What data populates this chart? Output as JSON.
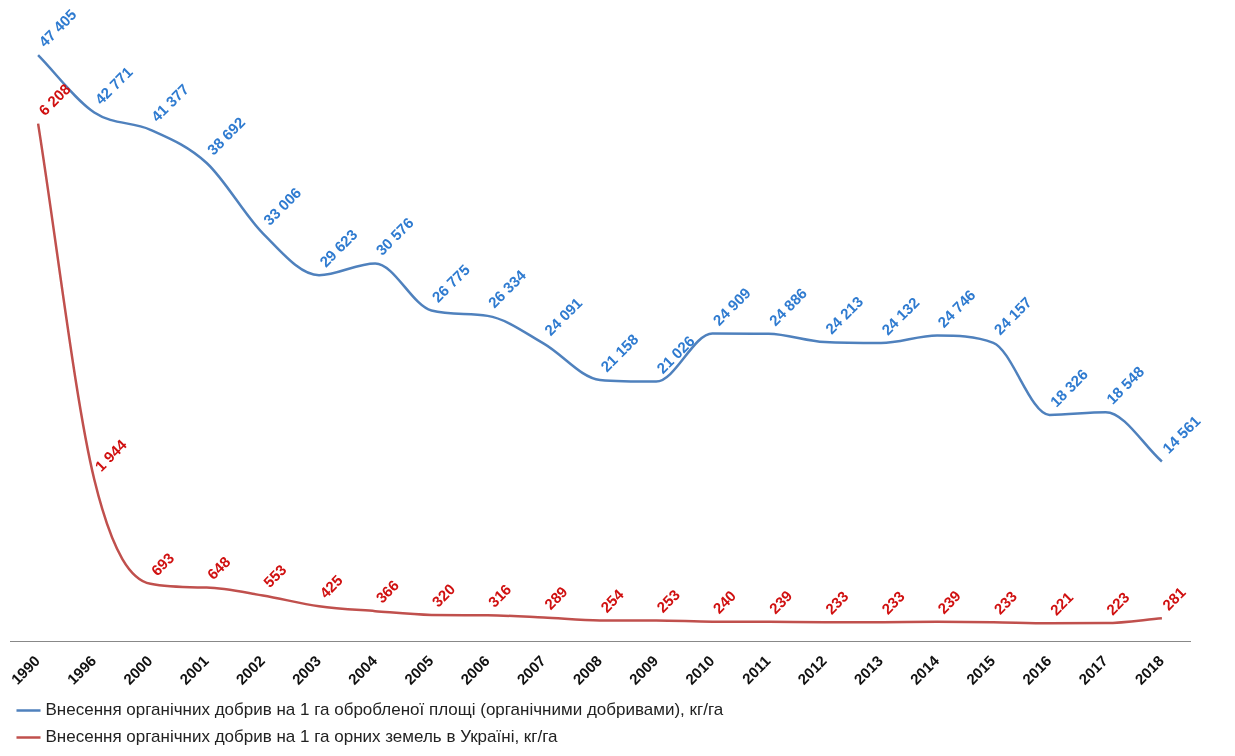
{
  "chart_data": {
    "type": "line",
    "categories": [
      "1990",
      "1996",
      "2000",
      "2001",
      "2002",
      "2003",
      "2004",
      "2005",
      "2006",
      "2007",
      "2008",
      "2009",
      "2010",
      "2011",
      "2012",
      "2013",
      "2014",
      "2015",
      "2016",
      "2017",
      "2018"
    ],
    "series": [
      {
        "name": "Внесення органічних добрив на 1 га обробленої площі (органічними добривами), кг/га",
        "color": "#4f81bd",
        "values": [
          47405,
          42771,
          41377,
          38692,
          33006,
          29623,
          30576,
          26775,
          26334,
          24091,
          21158,
          21026,
          24909,
          24886,
          24213,
          24132,
          24746,
          24157,
          18326,
          18548,
          14561
        ],
        "value_labels": [
          "47 405",
          "42 771",
          "41 377",
          "38 692",
          "33 006",
          "29 623",
          "30 576",
          "26 775",
          "26 334",
          "24 091",
          "21 158",
          "21 026",
          "24 909",
          "24 886",
          "24 213",
          "24 132",
          "24 746",
          "24 157",
          "18 326",
          "18 548",
          "14 561"
        ]
      },
      {
        "name": "Внесення органічних добрив на 1 га орних земель в Україні, кг/га",
        "color": "#c0504d",
        "axis": "y2",
        "values": [
          6208,
          1944,
          693,
          648,
          553,
          425,
          366,
          320,
          316,
          289,
          254,
          253,
          240,
          239,
          233,
          233,
          239,
          233,
          221,
          223,
          281
        ],
        "value_labels": [
          "6 208",
          "1 944",
          "693",
          "648",
          "553",
          "425",
          "366",
          "320",
          "316",
          "289",
          "254",
          "253",
          "240",
          "239",
          "233",
          "233",
          "239",
          "233",
          "221",
          "223",
          "281"
        ]
      }
    ],
    "tick_labels": "x",
    "legend": "bottom",
    "marker": "none",
    "grid": false
  }
}
